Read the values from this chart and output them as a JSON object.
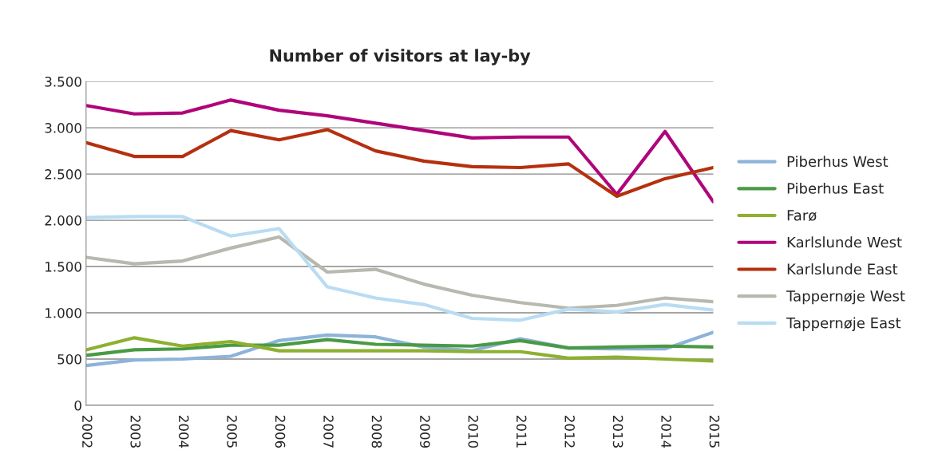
{
  "chart_data": {
    "type": "line",
    "title": "Number of visitors at lay-by",
    "categories": [
      "2002",
      "2003",
      "2004",
      "2005",
      "2006",
      "2007",
      "2008",
      "2009",
      "2010",
      "2011",
      "2012",
      "2013",
      "2014",
      "2015"
    ],
    "series": [
      {
        "name": "Piberhus West",
        "color": "#8db3d9",
        "values": [
          430,
          490,
          500,
          530,
          700,
          760,
          740,
          630,
          590,
          720,
          620,
          610,
          610,
          790
        ]
      },
      {
        "name": "Piberhus East",
        "color": "#4a9a45",
        "values": [
          540,
          600,
          610,
          650,
          650,
          710,
          660,
          650,
          640,
          700,
          620,
          630,
          640,
          630
        ]
      },
      {
        "name": "Farø",
        "color": "#8db030",
        "values": [
          600,
          730,
          640,
          690,
          590,
          590,
          590,
          590,
          580,
          580,
          510,
          520,
          500,
          480
        ]
      },
      {
        "name": "Karlslunde West",
        "color": "#b0047a",
        "values": [
          3240,
          3150,
          3160,
          3300,
          3190,
          3130,
          3050,
          2970,
          2890,
          2900,
          2900,
          2280,
          2960,
          2200
        ]
      },
      {
        "name": "Karlslunde East",
        "color": "#b5300f",
        "values": [
          2840,
          2690,
          2690,
          2970,
          2870,
          2980,
          2750,
          2640,
          2580,
          2570,
          2610,
          2260,
          2450,
          2570
        ]
      },
      {
        "name": "Tappernøje West",
        "color": "#b8b8b0",
        "values": [
          1600,
          1530,
          1560,
          1700,
          1820,
          1440,
          1470,
          1310,
          1190,
          1110,
          1050,
          1080,
          1160,
          1120
        ]
      },
      {
        "name": "Tappernøje East",
        "color": "#b9dcf3",
        "values": [
          2030,
          2040,
          2040,
          1830,
          1910,
          1280,
          1160,
          1090,
          940,
          920,
          1040,
          1010,
          1090,
          1030
        ]
      }
    ],
    "ylim": [
      0,
      3500
    ],
    "yticks": [
      0,
      500,
      {
        "value": 1000,
        "label": "1.000"
      },
      {
        "value": 1500,
        "label": "1.500"
      },
      {
        "value": 2000,
        "label": "2.000"
      },
      {
        "value": 2500,
        "label": "2.500"
      },
      {
        "value": 3000,
        "label": "3.000"
      },
      {
        "value": 3500,
        "label": "3.500"
      }
    ],
    "grid": "y",
    "legend": "right",
    "marker": "none",
    "line_style": "solid"
  }
}
